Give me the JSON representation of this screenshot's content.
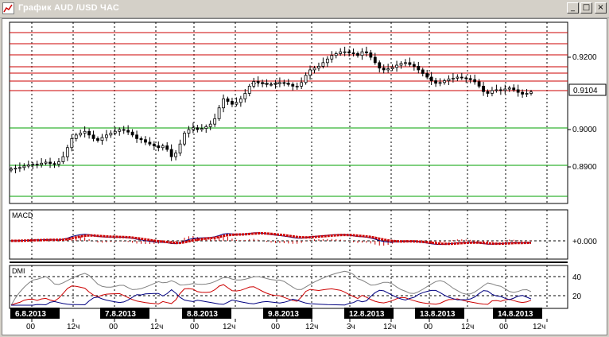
{
  "window": {
    "title": "График AUD /USD ЧАС",
    "buttons": {
      "minimize": "_",
      "maximize": "□",
      "close": "×"
    }
  },
  "price_chart": {
    "y_labels": [
      "0.9200",
      "0.9000",
      "0.8900"
    ],
    "current_price": "0.9104"
  },
  "macd": {
    "title": "MACD",
    "zero_label": "+0.000"
  },
  "dmi": {
    "title": "DMI",
    "levels": [
      "40",
      "20"
    ]
  },
  "dates": [
    "6.8.2013",
    "7.8.2013",
    "8.8.2013",
    "9.8.2013",
    "12.8.2013",
    "13.8.2013",
    "14.8.2013"
  ],
  "time_ticks": [
    "00",
    "12ч",
    "00",
    "12ч",
    "00",
    "12ч",
    "00",
    "12ч",
    "3ч",
    "12ч",
    "00",
    "12ч",
    "00",
    "12ч"
  ],
  "colors": {
    "resistance_line": "#cc0000",
    "support_line": "#00a000",
    "candle": "#000000",
    "macd_signal": "#cc0000",
    "macd_line": "#000080",
    "adx": "#808080",
    "plus_di": "#cc0000",
    "minus_di": "#000080"
  },
  "chart_data": {
    "type": "candlestick",
    "y_ticks": [
      0.92,
      0.9,
      0.89
    ],
    "current_price": 0.9104,
    "close": [
      0.8891,
      0.8893,
      0.8895,
      0.8899,
      0.8902,
      0.8904,
      0.8903,
      0.8907,
      0.891,
      0.8906,
      0.8904,
      0.8911,
      0.8925,
      0.895,
      0.8975,
      0.8985,
      0.899,
      0.8995,
      0.8985,
      0.8975,
      0.897,
      0.8978,
      0.8985,
      0.899,
      0.8995,
      0.9,
      0.8998,
      0.8993,
      0.8985,
      0.8975,
      0.8972,
      0.8965,
      0.896,
      0.8955,
      0.895,
      0.8955,
      0.8945,
      0.8925,
      0.8935,
      0.896,
      0.899,
      0.9,
      0.9005,
      0.9,
      0.9003,
      0.9008,
      0.9015,
      0.903,
      0.906,
      0.9085,
      0.9078,
      0.907,
      0.9075,
      0.9085,
      0.91,
      0.912,
      0.9133,
      0.913,
      0.9127,
      0.9125,
      0.9125,
      0.9127,
      0.913,
      0.9128,
      0.9125,
      0.912,
      0.912,
      0.913,
      0.915,
      0.9165,
      0.917,
      0.9175,
      0.9185,
      0.9195,
      0.9205,
      0.921,
      0.9215,
      0.9215,
      0.9212,
      0.921,
      0.9205,
      0.9215,
      0.9212,
      0.92,
      0.9185,
      0.917,
      0.9165,
      0.9168,
      0.9172,
      0.9178,
      0.9183,
      0.9185,
      0.918,
      0.9175,
      0.9165,
      0.9155,
      0.9145,
      0.9135,
      0.9128,
      0.913,
      0.9135,
      0.914,
      0.9142,
      0.9145,
      0.9143,
      0.9141,
      0.9138,
      0.9132,
      0.912,
      0.9105,
      0.91,
      0.9108,
      0.911,
      0.9108,
      0.9112,
      0.9115,
      0.911,
      0.9103,
      0.9098,
      0.91,
      0.9104
    ]
  }
}
